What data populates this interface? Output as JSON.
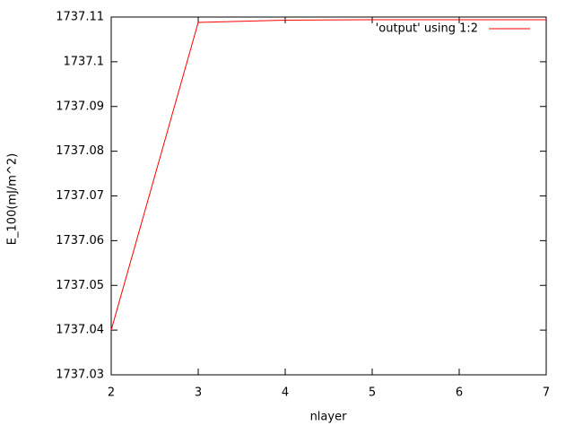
{
  "chart_data": {
    "type": "line",
    "xlabel": "nlayer",
    "ylabel": "E_100(mJ/m^2)",
    "x": [
      2,
      3,
      4,
      5,
      6,
      7
    ],
    "series": [
      {
        "name": "'output' using 1:2",
        "color": "#ff0000",
        "values": [
          1737.04,
          1737.1088,
          1737.1093,
          1737.1094,
          1737.1094,
          1737.1094
        ]
      }
    ],
    "xlim": [
      2,
      7
    ],
    "xticks": [
      2,
      3,
      4,
      5,
      6,
      7
    ],
    "ylim": [
      1737.03,
      1737.11
    ],
    "yticks": [
      1737.03,
      1737.04,
      1737.05,
      1737.06,
      1737.07,
      1737.08,
      1737.09,
      1737.1,
      1737.11
    ],
    "grid": false,
    "legend": "top-right"
  }
}
